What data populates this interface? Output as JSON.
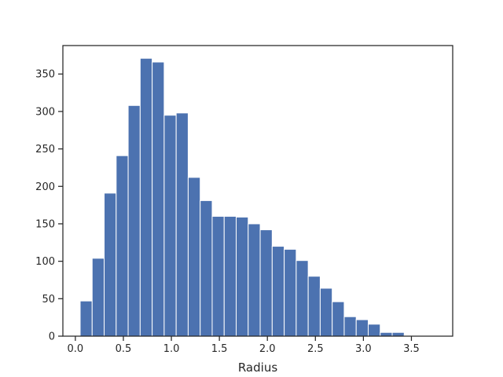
{
  "chart_data": {
    "type": "bar",
    "xlabel": "Radius",
    "ylabel": "",
    "title": "",
    "xlim": [
      -0.13,
      3.93
    ],
    "ylim": [
      0,
      388
    ],
    "grid": false,
    "bar_color": "#4c72b0",
    "bin_width": 0.125,
    "xticks": [
      0.0,
      0.5,
      1.0,
      1.5,
      2.0,
      2.5,
      3.0,
      3.5
    ],
    "xtick_labels": [
      "0.0",
      "0.5",
      "1.0",
      "1.5",
      "2.0",
      "2.5",
      "3.0",
      "3.5"
    ],
    "yticks": [
      0,
      50,
      100,
      150,
      200,
      250,
      300,
      350
    ],
    "ytick_labels": [
      "0",
      "50",
      "100",
      "150",
      "200",
      "250",
      "300",
      "350"
    ],
    "bins": [
      {
        "x": 0.05,
        "value": 47
      },
      {
        "x": 0.175,
        "value": 104
      },
      {
        "x": 0.3,
        "value": 191
      },
      {
        "x": 0.425,
        "value": 241
      },
      {
        "x": 0.55,
        "value": 308
      },
      {
        "x": 0.675,
        "value": 371
      },
      {
        "x": 0.8,
        "value": 366
      },
      {
        "x": 0.925,
        "value": 295
      },
      {
        "x": 1.05,
        "value": 298
      },
      {
        "x": 1.175,
        "value": 212
      },
      {
        "x": 1.3,
        "value": 181
      },
      {
        "x": 1.425,
        "value": 160
      },
      {
        "x": 1.55,
        "value": 160
      },
      {
        "x": 1.675,
        "value": 159
      },
      {
        "x": 1.8,
        "value": 150
      },
      {
        "x": 1.925,
        "value": 142
      },
      {
        "x": 2.05,
        "value": 120
      },
      {
        "x": 2.175,
        "value": 116
      },
      {
        "x": 2.3,
        "value": 101
      },
      {
        "x": 2.425,
        "value": 80
      },
      {
        "x": 2.55,
        "value": 64
      },
      {
        "x": 2.675,
        "value": 46
      },
      {
        "x": 2.8,
        "value": 26
      },
      {
        "x": 2.925,
        "value": 22
      },
      {
        "x": 3.05,
        "value": 16
      },
      {
        "x": 3.175,
        "value": 5
      },
      {
        "x": 3.3,
        "value": 5
      },
      {
        "x": 3.425,
        "value": 1
      },
      {
        "x": 3.55,
        "value": 1
      }
    ]
  }
}
